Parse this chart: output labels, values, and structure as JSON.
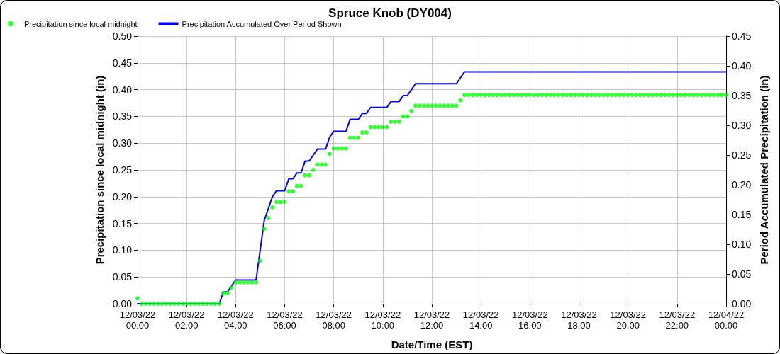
{
  "chart_data": {
    "type": "scatter",
    "title": "Spruce Knob (DY004)",
    "xlabel": "Date/Time (EST)",
    "ylabel": "Precipitation since local midnight (in)",
    "y2label": "Period Accumulated Precipitation (in)",
    "x": [
      "--12-03T00:00",
      "--12-03T00:10",
      "--12-03T00:20",
      "--12-03T00:30",
      "--12-03T00:40",
      "--12-03T00:50",
      "--12-03T01:00",
      "--12-03T01:10",
      "--12-03T01:20",
      "--12-03T01:30",
      "--12-03T01:40",
      "--12-03T01:50",
      "--12-03T02:00",
      "--12-03T02:10",
      "--12-03T02:20",
      "--12-03T02:30",
      "--12-03T02:40",
      "--12-03T02:50",
      "--12-03T03:00",
      "--12-03T03:10",
      "--12-03T03:20",
      "--12-03T03:30",
      "--12-03T03:40",
      "--12-03T03:50",
      "--12-03T04:00",
      "--12-03T04:10",
      "--12-03T04:20",
      "--12-03T04:30",
      "--12-03T04:40",
      "--12-03T04:50",
      "--12-03T05:00",
      "--12-03T05:10",
      "--12-03T05:20",
      "--12-03T05:30",
      "--12-03T05:40",
      "--12-03T05:50",
      "--12-03T06:00",
      "--12-03T06:10",
      "--12-03T06:20",
      "--12-03T06:30",
      "--12-03T06:40",
      "--12-03T06:50",
      "--12-03T07:00",
      "--12-03T07:10",
      "--12-03T07:20",
      "--12-03T07:30",
      "--12-03T07:40",
      "--12-03T07:50",
      "--12-03T08:00",
      "--12-03T08:10",
      "--12-03T08:20",
      "--12-03T08:30",
      "--12-03T08:40",
      "--12-03T08:50",
      "--12-03T09:00",
      "--12-03T09:10",
      "--12-03T09:20",
      "--12-03T09:30",
      "--12-03T09:40",
      "--12-03T09:50",
      "--12-03T10:00",
      "--12-03T10:10",
      "--12-03T10:20",
      "--12-03T10:30",
      "--12-03T10:40",
      "--12-03T10:50",
      "--12-03T11:00",
      "--12-03T11:10",
      "--12-03T11:20",
      "--12-03T11:30",
      "--12-03T11:40",
      "--12-03T11:50",
      "--12-03T12:00",
      "--12-03T12:10",
      "--12-03T12:20",
      "--12-03T12:30",
      "--12-03T12:40",
      "--12-03T12:50",
      "--12-03T13:00",
      "--12-03T13:10",
      "--12-03T13:20",
      "--12-03T13:30",
      "--12-03T13:40",
      "--12-03T13:50",
      "--12-03T14:00",
      "--12-03T14:10",
      "--12-03T14:20",
      "--12-03T14:30",
      "--12-03T14:40",
      "--12-03T14:50",
      "--12-03T15:00",
      "--12-03T15:10",
      "--12-03T15:20",
      "--12-03T15:30",
      "--12-03T15:40",
      "--12-03T15:50",
      "--12-03T16:00",
      "--12-03T16:10",
      "--12-03T16:20",
      "--12-03T16:30",
      "--12-03T16:40",
      "--12-03T16:50",
      "--12-03T17:00",
      "--12-03T17:10",
      "--12-03T17:20",
      "--12-03T17:30",
      "--12-03T17:40",
      "--12-03T17:50",
      "--12-03T18:00",
      "--12-03T18:10",
      "--12-03T18:20",
      "--12-03T18:30",
      "--12-03T18:40",
      "--12-03T18:50",
      "--12-03T19:00",
      "--12-03T19:10",
      "--12-03T19:20",
      "--12-03T19:30",
      "--12-03T19:40",
      "--12-03T19:50",
      "--12-03T20:00",
      "--12-03T20:10",
      "--12-03T20:20",
      "--12-03T20:30",
      "--12-03T20:40",
      "--12-03T20:50",
      "--12-03T21:00",
      "--12-03T21:10",
      "--12-03T21:20",
      "--12-03T21:30",
      "--12-03T21:40",
      "--12-03T21:50",
      "--12-03T22:00",
      "--12-03T22:10",
      "--12-03T22:20",
      "--12-03T22:30",
      "--12-03T22:40",
      "--12-03T22:50",
      "--12-03T23:00",
      "--12-03T23:10",
      "--12-03T23:20",
      "--12-03T23:30",
      "--12-03T23:40",
      "--12-03T23:50",
      "--12-04T00:00"
    ],
    "series": [
      {
        "name": "Precipitation since local midnight",
        "marker": "circle",
        "color": "#00ff00",
        "values": [
          0.01,
          0,
          0,
          0,
          0,
          0,
          0,
          0,
          0,
          0,
          0,
          0,
          0,
          0,
          0,
          0,
          0,
          0,
          0,
          0,
          0,
          0.02,
          0.02,
          0.03,
          0.04,
          0.04,
          0.04,
          0.04,
          0.04,
          0.04,
          0.08,
          0.14,
          0.16,
          0.18,
          0.19,
          0.19,
          0.19,
          0.21,
          0.21,
          0.22,
          0.22,
          0.24,
          0.24,
          0.25,
          0.26,
          0.26,
          0.26,
          0.28,
          0.29,
          0.29,
          0.29,
          0.29,
          0.31,
          0.31,
          0.31,
          0.32,
          0.32,
          0.33,
          0.33,
          0.33,
          0.33,
          0.33,
          0.34,
          0.34,
          0.34,
          0.35,
          0.35,
          0.36,
          0.37,
          0.37,
          0.37,
          0.37,
          0.37,
          0.37,
          0.37,
          0.37,
          0.37,
          0.37,
          0.37,
          0.38,
          0.39,
          0.39,
          0.39,
          0.39,
          0.39,
          0.39,
          0.39,
          0.39,
          0.39,
          0.39,
          0.39,
          0.39,
          0.39,
          0.39,
          0.39,
          0.39,
          0.39,
          0.39,
          0.39,
          0.39,
          0.39,
          0.39,
          0.39,
          0.39,
          0.39,
          0.39,
          0.39,
          0.39,
          0.39,
          0.39,
          0.39,
          0.39,
          0.39,
          0.39,
          0.39,
          0.39,
          0.39,
          0.39,
          0.39,
          0.39,
          0.39,
          0.39,
          0.39,
          0.39,
          0.39,
          0.39,
          0.39,
          0.39,
          0.39,
          0.39,
          0.39,
          0.39,
          0.39,
          0.39,
          0.39,
          0.39,
          0.39,
          0.39,
          0.39,
          0.39,
          0.39,
          0.39,
          0.39,
          0.39,
          0.39
        ]
      },
      {
        "name": "Precipitation Accumulated Over Period Shown",
        "type": "line",
        "axis": "y2",
        "marker": "none",
        "line_style": "solid",
        "color": "#0000ff",
        "values": [
          0,
          0,
          0,
          0,
          0,
          0,
          0,
          0,
          0,
          0,
          0,
          0,
          0,
          0,
          0,
          0,
          0,
          0,
          0,
          0,
          0,
          0.02,
          0.02,
          0.03,
          0.04,
          0.04,
          0.04,
          0.04,
          0.04,
          0.04,
          0.09,
          0.14,
          0.16,
          0.18,
          0.19,
          0.19,
          0.19,
          0.21,
          0.21,
          0.22,
          0.22,
          0.24,
          0.24,
          0.25,
          0.26,
          0.26,
          0.26,
          0.28,
          0.29,
          0.29,
          0.29,
          0.29,
          0.31,
          0.31,
          0.31,
          0.32,
          0.32,
          0.33,
          0.33,
          0.33,
          0.33,
          0.33,
          0.34,
          0.34,
          0.34,
          0.35,
          0.35,
          0.36,
          0.37,
          0.37,
          0.37,
          0.37,
          0.37,
          0.37,
          0.37,
          0.37,
          0.37,
          0.37,
          0.37,
          0.38,
          0.39,
          0.39,
          0.39,
          0.39,
          0.39,
          0.39,
          0.39,
          0.39,
          0.39,
          0.39,
          0.39,
          0.39,
          0.39,
          0.39,
          0.39,
          0.39,
          0.39,
          0.39,
          0.39,
          0.39,
          0.39,
          0.39,
          0.39,
          0.39,
          0.39,
          0.39,
          0.39,
          0.39,
          0.39,
          0.39,
          0.39,
          0.39,
          0.39,
          0.39,
          0.39,
          0.39,
          0.39,
          0.39,
          0.39,
          0.39,
          0.39,
          0.39,
          0.39,
          0.39,
          0.39,
          0.39,
          0.39,
          0.39,
          0.39,
          0.39,
          0.39,
          0.39,
          0.39,
          0.39,
          0.39,
          0.39,
          0.39,
          0.39,
          0.39,
          0.39,
          0.39,
          0.39,
          0.39,
          0.39,
          0.39
        ]
      }
    ],
    "xlim": [
      "--12-03T00:00",
      "--12-04T00:00"
    ],
    "xticks": [
      {
        "value": "--12-03T00:00",
        "label": "12/03/22\n00:00"
      },
      {
        "value": "--12-03T02:00",
        "label": "12/03/22\n02:00"
      },
      {
        "value": "--12-03T04:00",
        "label": "12/03/22\n04:00"
      },
      {
        "value": "--12-03T06:00",
        "label": "12/03/22\n06:00"
      },
      {
        "value": "--12-03T08:00",
        "label": "12/03/22\n08:00"
      },
      {
        "value": "--12-03T10:00",
        "label": "12/03/22\n10:00"
      },
      {
        "value": "--12-03T12:00",
        "label": "12/03/22\n12:00"
      },
      {
        "value": "--12-03T14:00",
        "label": "12/03/22\n14:00"
      },
      {
        "value": "--12-03T16:00",
        "label": "12/03/22\n16:00"
      },
      {
        "value": "--12-03T18:00",
        "label": "12/03/22\n18:00"
      },
      {
        "value": "--12-03T20:00",
        "label": "12/03/22\n20:00"
      },
      {
        "value": "--12-03T22:00",
        "label": "12/03/22\n22:00"
      },
      {
        "value": "--12-04T00:00",
        "label": "12/04/22\n00:00"
      }
    ],
    "ylim": [
      0,
      0.5
    ],
    "yticks": [
      {
        "value": 0,
        "label": "0.00"
      },
      {
        "value": 0.05,
        "label": "0.05"
      },
      {
        "value": 0.1,
        "label": "0.10"
      },
      {
        "value": 0.15,
        "label": "0.15"
      },
      {
        "value": 0.2,
        "label": "0.20"
      },
      {
        "value": 0.25,
        "label": "0.25"
      },
      {
        "value": 0.3,
        "label": "0.30"
      },
      {
        "value": 0.35,
        "label": "0.35"
      },
      {
        "value": 0.4,
        "label": "0.40"
      },
      {
        "value": 0.45,
        "label": "0.45"
      },
      {
        "value": 0.5,
        "label": "0.50"
      }
    ],
    "y2lim": [
      0,
      0.45
    ],
    "y2ticks": [
      {
        "value": 0,
        "label": "0.00"
      },
      {
        "value": 0.05,
        "label": "0.05"
      },
      {
        "value": 0.1,
        "label": "0.10"
      },
      {
        "value": 0.15,
        "label": "0.15"
      },
      {
        "value": 0.2,
        "label": "0.20"
      },
      {
        "value": 0.25,
        "label": "0.25"
      },
      {
        "value": 0.3,
        "label": "0.30"
      },
      {
        "value": 0.35,
        "label": "0.35"
      },
      {
        "value": 0.4,
        "label": "0.40"
      },
      {
        "value": 0.45,
        "label": "0.45"
      }
    ],
    "grid": true,
    "legend": "top left"
  }
}
